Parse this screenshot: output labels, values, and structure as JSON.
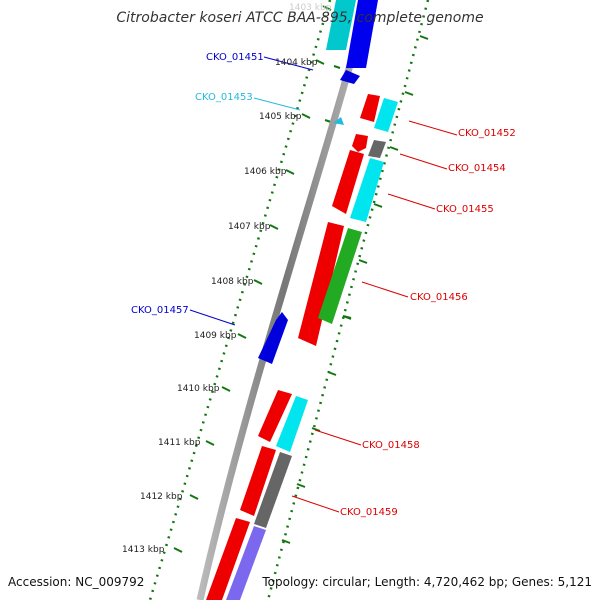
{
  "title": "Citrobacter koseri ATCC BAA-895, complete genome",
  "footer": {
    "accession": "Accession: NC_009792",
    "summary": "Topology: circular; Length: 4,720,462 bp; Genes: 5,121"
  },
  "ticks": [
    {
      "label": "1403 kbp"
    },
    {
      "label": "1404 kbp"
    },
    {
      "label": "1405 kbp"
    },
    {
      "label": "1406 kbp"
    },
    {
      "label": "1407 kbp"
    },
    {
      "label": "1408 kbp"
    },
    {
      "label": "1409 kbp"
    },
    {
      "label": "1410 kbp"
    },
    {
      "label": "1411 kbp"
    },
    {
      "label": "1412 kbp"
    },
    {
      "label": "1413 kbp"
    }
  ],
  "gene_labels": [
    {
      "label": "CKO_01451",
      "color": "#0000cc"
    },
    {
      "label": "CKO_01453",
      "color": "#22bbdd"
    },
    {
      "label": "CKO_01452",
      "color": "#dd0000"
    },
    {
      "label": "CKO_01454",
      "color": "#dd0000"
    },
    {
      "label": "CKO_01455",
      "color": "#dd0000"
    },
    {
      "label": "CKO_01456",
      "color": "#dd0000"
    },
    {
      "label": "CKO_01457",
      "color": "#0000cc"
    },
    {
      "label": "CKO_01458",
      "color": "#dd0000"
    },
    {
      "label": "CKO_01459",
      "color": "#dd0000"
    }
  ],
  "colors": {
    "backbone": "#888888",
    "cds_forward": "#ee0000",
    "cds_reverse": "#0000dd",
    "cyan": "#00e5ee",
    "green": "#22aa22",
    "gray": "#666666",
    "purple": "#7b68ee",
    "tick_green": "#117711"
  }
}
